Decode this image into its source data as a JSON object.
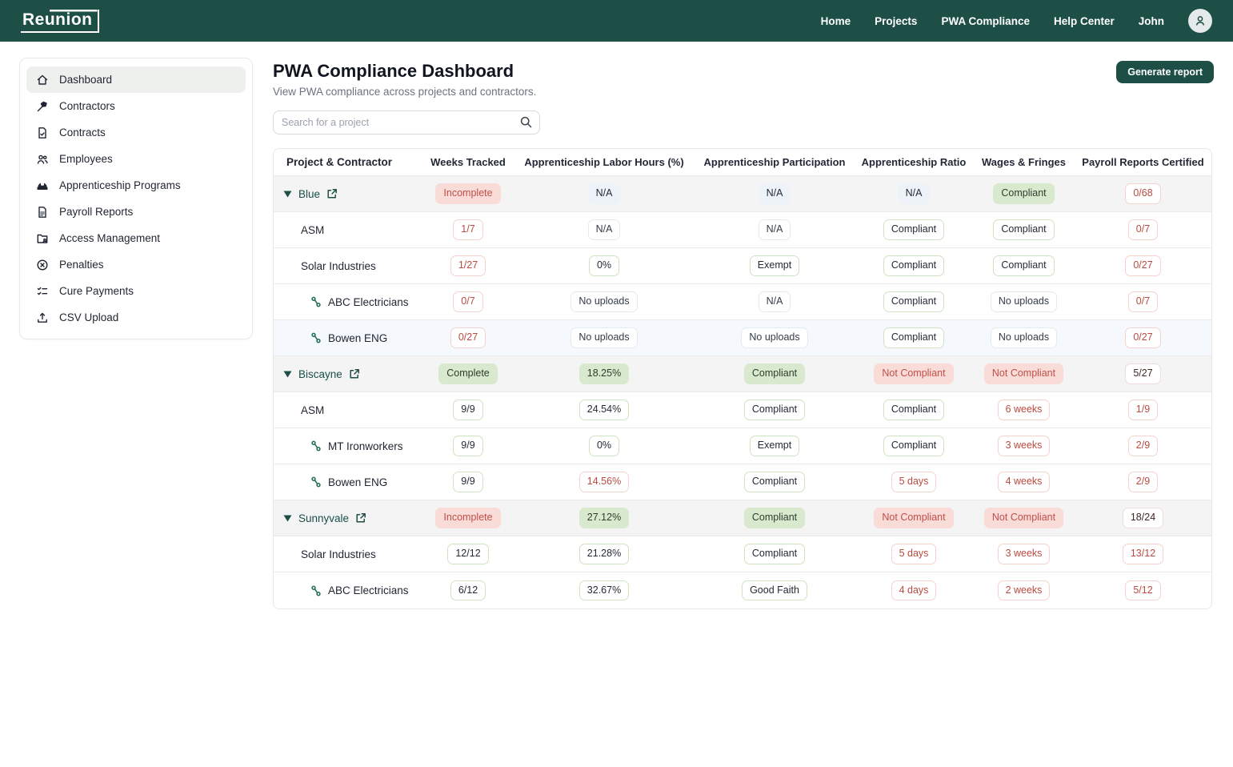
{
  "brand": {
    "logo_text": "Reunion"
  },
  "navbar": {
    "items": [
      {
        "label": "Home"
      },
      {
        "label": "Projects"
      },
      {
        "label": "PWA Compliance"
      },
      {
        "label": "Help Center"
      }
    ],
    "user_name": "John",
    "avatar_icon": "user-icon"
  },
  "sidebar": {
    "items": [
      {
        "label": "Dashboard",
        "icon": "home-icon",
        "active": true
      },
      {
        "label": "Contractors",
        "icon": "tool-icon",
        "active": false
      },
      {
        "label": "Contracts",
        "icon": "document-check-icon",
        "active": false
      },
      {
        "label": "Employees",
        "icon": "people-icon",
        "active": false
      },
      {
        "label": "Apprenticeship Programs",
        "icon": "hard-hat-icon",
        "active": false
      },
      {
        "label": "Payroll Reports",
        "icon": "report-icon",
        "active": false
      },
      {
        "label": "Access Management",
        "icon": "folder-user-icon",
        "active": false
      },
      {
        "label": "Penalties",
        "icon": "x-circle-icon",
        "active": false
      },
      {
        "label": "Cure Payments",
        "icon": "checklist-icon",
        "active": false
      },
      {
        "label": "CSV Upload",
        "icon": "upload-icon",
        "active": false
      }
    ]
  },
  "header": {
    "title": "PWA Compliance Dashboard",
    "subtitle": "View PWA compliance across projects and contractors.",
    "search_placeholder": "Search for a project",
    "generate_button_label": "Generate report"
  },
  "table": {
    "columns": [
      "Project & Contractor",
      "Weeks Tracked",
      "Apprenticeship Labor Hours (%)",
      "Apprenticeship Participation",
      "Apprenticeship Ratio",
      "Wages & Fringes",
      "Payroll Reports Certified"
    ],
    "rows": [
      {
        "type": "project",
        "name": "Blue",
        "highlight": false,
        "cells": [
          {
            "text": "Incomplete",
            "style": "fr"
          },
          {
            "text": "N/A",
            "style": "fb"
          },
          {
            "text": "N/A",
            "style": "fb"
          },
          {
            "text": "N/A",
            "style": "fb"
          },
          {
            "text": "Compliant",
            "style": "fg"
          },
          {
            "text": "0/68",
            "style": "or"
          }
        ]
      },
      {
        "type": "contractor",
        "name": "ASM",
        "highlight": false,
        "cells": [
          {
            "text": "1/7",
            "style": "or"
          },
          {
            "text": "N/A",
            "style": "ogr"
          },
          {
            "text": "N/A",
            "style": "ogr"
          },
          {
            "text": "Compliant",
            "style": "og"
          },
          {
            "text": "Compliant",
            "style": "og"
          },
          {
            "text": "0/7",
            "style": "or"
          }
        ]
      },
      {
        "type": "contractor",
        "name": "Solar Industries",
        "highlight": false,
        "cells": [
          {
            "text": "1/27",
            "style": "or"
          },
          {
            "text": "0%",
            "style": "og"
          },
          {
            "text": "Exempt",
            "style": "og"
          },
          {
            "text": "Compliant",
            "style": "og"
          },
          {
            "text": "Compliant",
            "style": "og"
          },
          {
            "text": "0/27",
            "style": "or"
          }
        ]
      },
      {
        "type": "subcontractor",
        "name": "ABC Electricians",
        "highlight": false,
        "cells": [
          {
            "text": "0/7",
            "style": "or"
          },
          {
            "text": "No uploads",
            "style": "ogr"
          },
          {
            "text": "N/A",
            "style": "ogr"
          },
          {
            "text": "Compliant",
            "style": "og"
          },
          {
            "text": "No uploads",
            "style": "ogr"
          },
          {
            "text": "0/7",
            "style": "or"
          }
        ]
      },
      {
        "type": "subcontractor",
        "name": "Bowen ENG",
        "highlight": true,
        "cells": [
          {
            "text": "0/27",
            "style": "or"
          },
          {
            "text": "No uploads",
            "style": "ogr"
          },
          {
            "text": "No uploads",
            "style": "ogr"
          },
          {
            "text": "Compliant",
            "style": "og"
          },
          {
            "text": "No uploads",
            "style": "ogr"
          },
          {
            "text": "0/27",
            "style": "or"
          }
        ]
      },
      {
        "type": "project",
        "name": "Biscayne",
        "highlight": false,
        "cells": [
          {
            "text": "Complete",
            "style": "fg"
          },
          {
            "text": "18.25%",
            "style": "fg"
          },
          {
            "text": "Compliant",
            "style": "fg"
          },
          {
            "text": "Not Compliant",
            "style": "fr"
          },
          {
            "text": "Not Compliant",
            "style": "fr"
          },
          {
            "text": "5/27",
            "style": "on"
          }
        ]
      },
      {
        "type": "contractor",
        "name": "ASM",
        "highlight": false,
        "cells": [
          {
            "text": "9/9",
            "style": "og"
          },
          {
            "text": "24.54%",
            "style": "og"
          },
          {
            "text": "Compliant",
            "style": "og"
          },
          {
            "text": "Compliant",
            "style": "og"
          },
          {
            "text": "6 weeks",
            "style": "or"
          },
          {
            "text": "1/9",
            "style": "or"
          }
        ]
      },
      {
        "type": "subcontractor",
        "name": "MT Ironworkers",
        "highlight": false,
        "cells": [
          {
            "text": "9/9",
            "style": "og"
          },
          {
            "text": "0%",
            "style": "og"
          },
          {
            "text": "Exempt",
            "style": "og"
          },
          {
            "text": "Compliant",
            "style": "og"
          },
          {
            "text": "3 weeks",
            "style": "or"
          },
          {
            "text": "2/9",
            "style": "or"
          }
        ]
      },
      {
        "type": "subcontractor",
        "name": "Bowen ENG",
        "highlight": false,
        "cells": [
          {
            "text": "9/9",
            "style": "og"
          },
          {
            "text": "14.56%",
            "style": "or"
          },
          {
            "text": "Compliant",
            "style": "og"
          },
          {
            "text": "5 days",
            "style": "or"
          },
          {
            "text": "4 weeks",
            "style": "or"
          },
          {
            "text": "2/9",
            "style": "or"
          }
        ]
      },
      {
        "type": "project",
        "name": "Sunnyvale",
        "highlight": false,
        "cells": [
          {
            "text": "Incomplete",
            "style": "fr"
          },
          {
            "text": "27.12%",
            "style": "fg"
          },
          {
            "text": "Compliant",
            "style": "fg"
          },
          {
            "text": "Not Compliant",
            "style": "fr"
          },
          {
            "text": "Not Compliant",
            "style": "fr"
          },
          {
            "text": "18/24",
            "style": "on"
          }
        ]
      },
      {
        "type": "contractor",
        "name": "Solar Industries",
        "highlight": false,
        "cells": [
          {
            "text": "12/12",
            "style": "og"
          },
          {
            "text": "21.28%",
            "style": "og"
          },
          {
            "text": "Compliant",
            "style": "og"
          },
          {
            "text": "5 days",
            "style": "or"
          },
          {
            "text": "3 weeks",
            "style": "or"
          },
          {
            "text": "13/12",
            "style": "or"
          }
        ]
      },
      {
        "type": "subcontractor",
        "name": "ABC Electricians",
        "highlight": false,
        "cells": [
          {
            "text": "6/12",
            "style": "og"
          },
          {
            "text": "32.67%",
            "style": "og"
          },
          {
            "text": "Good Faith",
            "style": "og"
          },
          {
            "text": "4 days",
            "style": "or"
          },
          {
            "text": "2 weeks",
            "style": "or"
          },
          {
            "text": "5/12",
            "style": "or"
          }
        ]
      }
    ]
  },
  "colors": {
    "navbar_bg": "#1d4f46",
    "accent_green_badge_bg": "#d9e9cd",
    "accent_red_badge_bg": "#f9dbd8",
    "accent_blue_badge_bg": "#eef3fa",
    "red_text": "#bb4a40",
    "project_row_bg": "#f4f4f5",
    "highlight_row_bg": "#f5f8fd",
    "project_link_color": "#194f46"
  }
}
